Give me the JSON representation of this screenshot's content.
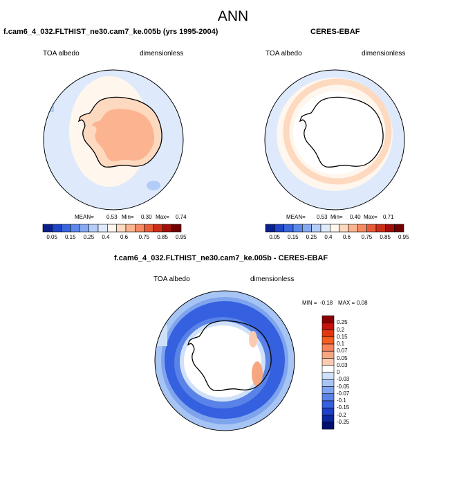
{
  "main_title": "ANN",
  "panels": [
    {
      "title": "f.cam6_4_032.FLTHIST_ne30.cam7_ke.005b (yrs 1995-2004)",
      "left_label": "TOA albedo",
      "right_label": "dimensionless",
      "stats": {
        "mean_label": "MEAN=",
        "mean": "0.53",
        "min_label": "Min=",
        "min": "0.30",
        "max_label": "Max=",
        "max": "0.74"
      }
    },
    {
      "title": "CERES-EBAF",
      "left_label": "TOA albedo",
      "right_label": "dimensionless",
      "stats": {
        "mean_label": "MEAN=",
        "mean": "0.53",
        "min_label": "Min=",
        "min": "0.40",
        "max_label": "Max=",
        "max": "0.71"
      }
    },
    {
      "title": "f.cam6_4_032.FLTHIST_ne30.cam7_ke.005b - CERES-EBAF",
      "left_label": "TOA albedo",
      "right_label": "dimensionless",
      "stats": {
        "min_label": "MIN =",
        "min": "-0.18",
        "max_label": "MAX =",
        "max": "0.08"
      }
    }
  ],
  "abs_colorbar": {
    "colors": [
      "#0b1f8f",
      "#1f44c8",
      "#3766dd",
      "#5b88ea",
      "#86aaf2",
      "#b3ccf8",
      "#deeafc",
      "#fff6ed",
      "#fdd9c0",
      "#fbb48f",
      "#f58a62",
      "#e85a37",
      "#cc2d17",
      "#a30e08",
      "#730000"
    ],
    "labels": [
      "0.05",
      "0.15",
      "0.25",
      "0.4",
      "0.6",
      "0.75",
      "0.85",
      "0.95"
    ]
  },
  "diff_colorbar": {
    "colors": [
      "#8b0000",
      "#c8120b",
      "#e3380f",
      "#f55f1f",
      "#f7845a",
      "#f7a780",
      "#fccab0",
      "#ffffff",
      "#cfe0fa",
      "#a6c4f4",
      "#7fa4ee",
      "#5a83e8",
      "#3560df",
      "#1d3fc9",
      "#0b259e",
      "#001070"
    ],
    "labels": [
      "0.25",
      "0.2",
      "0.15",
      "0.1",
      "0.07",
      "0.05",
      "0.03",
      "0",
      "-0.03",
      "-0.05",
      "-0.07",
      "-0.1",
      "-0.15",
      "-0.2",
      "-0.25"
    ]
  }
}
